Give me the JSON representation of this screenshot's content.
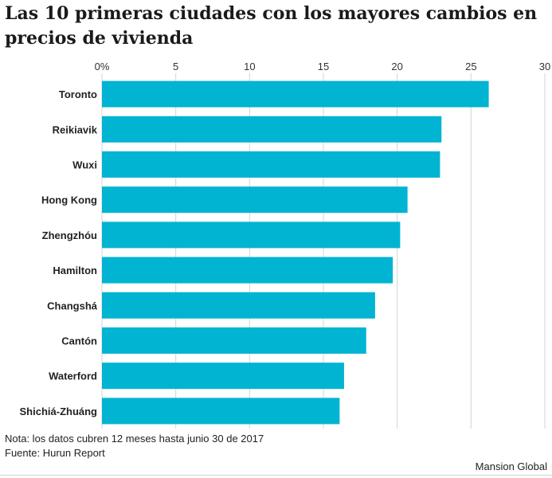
{
  "chart_data": {
    "type": "bar",
    "orientation": "horizontal",
    "title": "Las 10 primeras ciudades con los mayores cambios en precios de vivienda",
    "xlim": [
      0,
      30
    ],
    "ticks": [
      "0%",
      "5",
      "10",
      "15",
      "20",
      "25",
      "30"
    ],
    "tick_values": [
      0,
      5,
      10,
      15,
      20,
      25,
      30
    ],
    "grid": true,
    "categories": [
      "Toronto",
      "Reikiavik",
      "Wuxi",
      "Hong Kong",
      "Zhengzhóu",
      "Hamilton",
      "Changshá",
      "Cantón",
      "Waterford",
      "Shichiá-Zhuáng"
    ],
    "values": [
      26.2,
      23.0,
      22.9,
      20.7,
      20.2,
      19.7,
      18.5,
      17.9,
      16.4,
      16.1
    ],
    "bar_color": "#00b4d2"
  },
  "notes": {
    "note": "Nota: los datos cubren 12 meses hasta junio 30 de 2017",
    "source": "Fuente: Hurun Report"
  },
  "credit": "Mansion Global"
}
